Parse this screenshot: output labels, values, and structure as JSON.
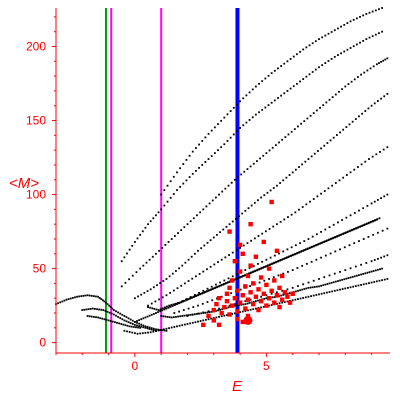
{
  "chart_data": {
    "type": "scatter",
    "title": "",
    "xlabel": "E",
    "ylabel": "<M>",
    "xlim": [
      -3.0,
      9.7
    ],
    "ylim": [
      -7,
      226
    ],
    "x_ticks": [
      0,
      5
    ],
    "y_ticks": [
      0,
      50,
      100,
      150,
      200
    ],
    "grid": false,
    "legend": "none",
    "colors": {
      "axis": "#ff0000",
      "background_points": "#000000",
      "highlight_points": "#ff0000",
      "line_green": "#00a000",
      "line_magenta": "#ff00ff",
      "line_blue": "#0000ff"
    },
    "vertical_lines": [
      {
        "x": -1.1,
        "color": "#00a000",
        "width": 2
      },
      {
        "x": -0.9,
        "color": "#ff00ff",
        "width": 2
      },
      {
        "x": 1.0,
        "color": "#ff00ff",
        "width": 2
      },
      {
        "x": 3.9,
        "color": "#0000ff",
        "width": 4
      }
    ],
    "background_series": [
      {
        "points": [
          [
            1.0,
            100
          ],
          [
            1.6,
            115
          ],
          [
            2.2,
            129
          ],
          [
            2.8,
            141
          ],
          [
            3.4,
            152
          ],
          [
            4.0,
            163
          ],
          [
            4.6,
            173
          ],
          [
            5.2,
            182
          ],
          [
            5.8,
            190
          ],
          [
            6.4,
            198
          ],
          [
            7.0,
            205
          ],
          [
            7.6,
            211
          ],
          [
            8.2,
            217
          ],
          [
            8.8,
            222
          ],
          [
            9.4,
            226
          ]
        ]
      },
      {
        "points": [
          [
            -0.5,
            55
          ],
          [
            0.0,
            68
          ],
          [
            0.5,
            80
          ],
          [
            1.0,
            90
          ],
          [
            1.6,
            103
          ],
          [
            2.2,
            114
          ],
          [
            2.8,
            124
          ],
          [
            3.4,
            134
          ],
          [
            4.0,
            145
          ],
          [
            4.6,
            154
          ],
          [
            5.2,
            162
          ],
          [
            5.8,
            170
          ],
          [
            6.4,
            178
          ],
          [
            7.0,
            186
          ],
          [
            7.6,
            193
          ],
          [
            8.2,
            199
          ],
          [
            8.8,
            205
          ],
          [
            9.4,
            210
          ]
        ]
      },
      {
        "points": [
          [
            -0.5,
            38
          ],
          [
            0.2,
            50
          ],
          [
            0.8,
            60
          ],
          [
            1.4,
            70
          ],
          [
            2.0,
            80
          ],
          [
            2.6,
            90
          ],
          [
            3.2,
            100
          ],
          [
            3.8,
            110
          ],
          [
            4.4,
            119
          ],
          [
            5.0,
            128
          ],
          [
            5.6,
            137
          ],
          [
            6.2,
            146
          ],
          [
            6.8,
            155
          ],
          [
            7.4,
            164
          ],
          [
            8.0,
            173
          ],
          [
            8.6,
            181
          ],
          [
            9.2,
            188
          ],
          [
            9.6,
            192
          ]
        ]
      },
      {
        "points": [
          [
            0.0,
            30
          ],
          [
            0.6,
            36
          ],
          [
            1.2,
            43
          ],
          [
            1.8,
            52
          ],
          [
            2.4,
            62
          ],
          [
            3.0,
            71
          ],
          [
            3.6,
            80
          ],
          [
            4.2,
            89
          ],
          [
            4.8,
            98
          ],
          [
            5.4,
            106
          ],
          [
            6.0,
            115
          ],
          [
            6.6,
            124
          ],
          [
            7.2,
            133
          ],
          [
            7.8,
            142
          ],
          [
            8.4,
            151
          ],
          [
            9.0,
            160
          ],
          [
            9.6,
            168
          ]
        ]
      },
      {
        "points": [
          [
            0.5,
            25
          ],
          [
            1.2,
            32
          ],
          [
            1.9,
            40
          ],
          [
            2.6,
            48
          ],
          [
            3.3,
            56
          ],
          [
            4.0,
            64
          ],
          [
            4.7,
            72
          ],
          [
            5.4,
            80
          ],
          [
            6.1,
            88
          ],
          [
            6.8,
            97
          ],
          [
            7.5,
            106
          ],
          [
            8.2,
            115
          ],
          [
            8.9,
            124
          ],
          [
            9.6,
            132
          ]
        ]
      },
      {
        "points": [
          [
            1.0,
            22
          ],
          [
            1.8,
            28
          ],
          [
            2.6,
            35
          ],
          [
            3.4,
            42
          ],
          [
            4.2,
            49
          ],
          [
            5.0,
            56
          ],
          [
            5.8,
            63
          ],
          [
            6.6,
            70
          ],
          [
            7.4,
            78
          ],
          [
            8.2,
            86
          ],
          [
            9.0,
            94
          ],
          [
            9.6,
            100
          ]
        ]
      },
      {
        "points": [
          [
            1.5,
            20
          ],
          [
            2.4,
            25
          ],
          [
            3.3,
            31
          ],
          [
            4.2,
            37
          ],
          [
            5.1,
            43
          ],
          [
            6.0,
            49
          ],
          [
            6.9,
            56
          ],
          [
            7.8,
            63
          ],
          [
            8.7,
            70
          ],
          [
            9.6,
            77
          ]
        ]
      },
      {
        "points": [
          [
            2.0,
            18
          ],
          [
            3.0,
            22
          ],
          [
            4.0,
            27
          ],
          [
            5.0,
            32
          ],
          [
            6.0,
            37
          ],
          [
            7.0,
            43
          ],
          [
            8.0,
            49
          ],
          [
            9.0,
            55
          ],
          [
            9.6,
            59
          ]
        ]
      },
      {
        "points": [
          [
            -3.0,
            26
          ],
          [
            -2.6,
            29
          ],
          [
            -2.2,
            31
          ],
          [
            -1.8,
            32
          ],
          [
            -1.4,
            31
          ],
          [
            -1.1,
            27
          ],
          [
            -0.8,
            22
          ],
          [
            -0.4,
            18
          ],
          [
            0.0,
            14
          ],
          [
            0.4,
            11
          ],
          [
            0.8,
            9
          ],
          [
            1.2,
            8
          ]
        ]
      },
      {
        "points": [
          [
            -2.0,
            22
          ],
          [
            -1.6,
            23
          ],
          [
            -1.2,
            22
          ],
          [
            -0.8,
            19
          ],
          [
            -0.4,
            15
          ],
          [
            0.0,
            12
          ],
          [
            0.4,
            10
          ],
          [
            0.8,
            8
          ]
        ]
      },
      {
        "points": [
          [
            -1.8,
            18
          ],
          [
            -1.4,
            17
          ],
          [
            -1.0,
            15
          ],
          [
            -0.6,
            13
          ],
          [
            -0.2,
            11
          ],
          [
            0.2,
            10
          ]
        ]
      },
      {
        "points": [
          [
            1.0,
            18
          ],
          [
            1.4,
            17
          ],
          [
            1.8,
            18
          ],
          [
            2.2,
            19
          ],
          [
            2.6,
            20
          ],
          [
            3.0,
            21
          ],
          [
            3.4,
            23
          ],
          [
            3.8,
            25
          ],
          [
            4.2,
            26
          ],
          [
            4.6,
            28
          ],
          [
            5.0,
            30
          ],
          [
            5.4,
            31
          ],
          [
            5.8,
            33
          ],
          [
            6.2,
            35
          ],
          [
            6.6,
            37
          ],
          [
            7.0,
            38
          ],
          [
            7.4,
            40
          ],
          [
            7.8,
            42
          ],
          [
            8.2,
            44
          ],
          [
            8.6,
            46
          ],
          [
            9.0,
            48
          ],
          [
            9.4,
            50
          ]
        ]
      },
      {
        "points": [
          [
            0.5,
            24
          ],
          [
            0.9,
            22
          ],
          [
            1.3,
            25
          ],
          [
            1.7,
            27
          ],
          [
            2.1,
            30
          ],
          [
            2.5,
            33
          ],
          [
            2.9,
            36
          ],
          [
            3.3,
            39
          ],
          [
            3.7,
            42
          ],
          [
            4.1,
            45
          ],
          [
            4.5,
            48
          ],
          [
            4.9,
            51
          ],
          [
            5.3,
            54
          ],
          [
            5.7,
            57
          ],
          [
            6.1,
            60
          ],
          [
            6.5,
            63
          ],
          [
            6.9,
            66
          ],
          [
            7.3,
            69
          ],
          [
            7.7,
            72
          ],
          [
            8.1,
            75
          ],
          [
            8.5,
            78
          ],
          [
            8.9,
            81
          ],
          [
            9.3,
            84
          ]
        ]
      },
      {
        "points": [
          [
            0.0,
            14
          ],
          [
            0.4,
            17
          ],
          [
            0.8,
            20
          ],
          [
            1.2,
            23
          ],
          [
            1.6,
            26
          ],
          [
            2.0,
            29
          ],
          [
            2.4,
            32
          ],
          [
            2.8,
            35
          ],
          [
            3.2,
            38
          ],
          [
            3.6,
            41
          ],
          [
            4.0,
            44
          ],
          [
            4.4,
            47
          ],
          [
            4.8,
            50
          ],
          [
            5.2,
            53
          ],
          [
            5.6,
            56
          ],
          [
            6.0,
            59
          ],
          [
            6.4,
            62
          ],
          [
            6.8,
            65
          ],
          [
            7.2,
            68
          ],
          [
            7.6,
            71
          ],
          [
            8.0,
            74
          ],
          [
            8.4,
            77
          ],
          [
            8.8,
            80
          ],
          [
            9.2,
            83
          ]
        ]
      },
      {
        "points": [
          [
            -0.4,
            8
          ],
          [
            0.1,
            6
          ],
          [
            0.6,
            7
          ],
          [
            1.1,
            9
          ],
          [
            1.6,
            11
          ],
          [
            2.1,
            13
          ],
          [
            2.6,
            15
          ],
          [
            3.1,
            17
          ],
          [
            3.6,
            19
          ],
          [
            4.1,
            21
          ],
          [
            4.6,
            23
          ],
          [
            5.1,
            25
          ],
          [
            5.6,
            27
          ],
          [
            6.1,
            29
          ],
          [
            6.6,
            31
          ],
          [
            7.1,
            33
          ],
          [
            7.6,
            35
          ],
          [
            8.1,
            37
          ],
          [
            8.6,
            39
          ],
          [
            9.1,
            41
          ],
          [
            9.6,
            43
          ]
        ]
      }
    ],
    "highlight_points": [
      [
        2.8,
        18
      ],
      [
        3.0,
        22
      ],
      [
        3.1,
        26
      ],
      [
        3.2,
        30
      ],
      [
        3.3,
        20
      ],
      [
        3.4,
        24
      ],
      [
        3.5,
        28
      ],
      [
        3.5,
        33
      ],
      [
        3.6,
        19
      ],
      [
        3.6,
        37
      ],
      [
        3.7,
        25
      ],
      [
        3.7,
        42
      ],
      [
        3.8,
        30
      ],
      [
        3.8,
        55
      ],
      [
        3.9,
        21
      ],
      [
        3.9,
        35
      ],
      [
        4.0,
        27
      ],
      [
        4.0,
        48
      ],
      [
        4.1,
        32
      ],
      [
        4.1,
        60
      ],
      [
        4.2,
        23
      ],
      [
        4.2,
        38
      ],
      [
        4.3,
        29
      ],
      [
        4.3,
        45
      ],
      [
        4.4,
        34
      ],
      [
        4.4,
        52
      ],
      [
        4.5,
        26
      ],
      [
        4.5,
        40
      ],
      [
        4.6,
        31
      ],
      [
        4.6,
        58
      ],
      [
        4.7,
        36
      ],
      [
        4.7,
        22
      ],
      [
        4.8,
        28
      ],
      [
        4.8,
        44
      ],
      [
        4.9,
        33
      ],
      [
        4.9,
        68
      ],
      [
        5.0,
        25
      ],
      [
        5.0,
        39
      ],
      [
        5.1,
        30
      ],
      [
        5.1,
        50
      ],
      [
        5.2,
        35
      ],
      [
        5.2,
        95
      ],
      [
        5.3,
        27
      ],
      [
        5.3,
        42
      ],
      [
        5.4,
        32
      ],
      [
        5.4,
        62
      ],
      [
        5.5,
        37
      ],
      [
        5.5,
        24
      ],
      [
        5.6,
        29
      ],
      [
        5.6,
        45
      ],
      [
        5.7,
        34
      ],
      [
        5.8,
        31
      ],
      [
        3.0,
        15
      ],
      [
        3.2,
        12
      ],
      [
        4.3,
        18
      ],
      [
        3.6,
        75
      ],
      [
        4.0,
        66
      ],
      [
        4.4,
        80
      ],
      [
        2.6,
        12
      ],
      [
        3.9,
        16
      ],
      [
        4.1,
        14
      ],
      [
        5.9,
        27
      ],
      [
        6.0,
        33
      ]
    ],
    "large_highlight_point": [
      4.3,
      15
    ]
  }
}
